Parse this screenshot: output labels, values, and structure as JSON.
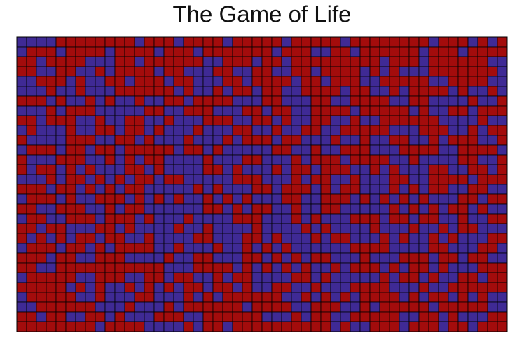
{
  "title": "The Game of Life",
  "colors": [
    "#a30c0c",
    "#3f2a95"
  ],
  "grid": [
    [
      1,
      1,
      1,
      1,
      0,
      0,
      0,
      0,
      0,
      0,
      0,
      0,
      1,
      0,
      0,
      0,
      1,
      0,
      0,
      0,
      0,
      1,
      0,
      0,
      0,
      0,
      0,
      1,
      0,
      0,
      0,
      0,
      0,
      1,
      0,
      0,
      0,
      0,
      0,
      0,
      0,
      0,
      1,
      0,
      0,
      0,
      1,
      0,
      1,
      0
    ],
    [
      1,
      0,
      0,
      0,
      1,
      0,
      0,
      0,
      0,
      1,
      0,
      0,
      0,
      0,
      1,
      0,
      0,
      0,
      1,
      0,
      0,
      0,
      0,
      0,
      0,
      0,
      1,
      0,
      0,
      0,
      1,
      1,
      0,
      0,
      1,
      0,
      0,
      0,
      0,
      0,
      0,
      1,
      0,
      0,
      0,
      1,
      0,
      0,
      0,
      0
    ],
    [
      0,
      0,
      1,
      0,
      0,
      0,
      0,
      1,
      1,
      1,
      0,
      0,
      1,
      0,
      0,
      0,
      0,
      0,
      0,
      1,
      1,
      0,
      0,
      0,
      1,
      0,
      0,
      1,
      0,
      0,
      0,
      0,
      0,
      0,
      0,
      0,
      0,
      1,
      0,
      0,
      0,
      1,
      0,
      0,
      0,
      0,
      0,
      0,
      1,
      1
    ],
    [
      0,
      0,
      1,
      1,
      0,
      0,
      1,
      1,
      0,
      1,
      0,
      0,
      0,
      0,
      1,
      0,
      0,
      1,
      1,
      1,
      0,
      0,
      1,
      1,
      0,
      0,
      1,
      1,
      0,
      0,
      1,
      0,
      0,
      0,
      0,
      1,
      0,
      1,
      0,
      1,
      1,
      1,
      0,
      0,
      0,
      0,
      0,
      0,
      0,
      1
    ],
    [
      1,
      1,
      0,
      0,
      0,
      1,
      0,
      1,
      1,
      0,
      0,
      1,
      0,
      0,
      0,
      1,
      0,
      0,
      1,
      1,
      1,
      0,
      0,
      1,
      0,
      0,
      0,
      0,
      1,
      0,
      0,
      1,
      0,
      0,
      0,
      1,
      1,
      0,
      0,
      0,
      0,
      0,
      1,
      1,
      0,
      0,
      0,
      0,
      1,
      1
    ],
    [
      1,
      1,
      1,
      0,
      1,
      1,
      0,
      1,
      1,
      1,
      0,
      0,
      0,
      0,
      0,
      0,
      1,
      0,
      1,
      1,
      0,
      1,
      0,
      0,
      1,
      0,
      0,
      1,
      1,
      0,
      0,
      0,
      0,
      1,
      0,
      0,
      1,
      1,
      0,
      1,
      0,
      0,
      0,
      0,
      1,
      0,
      1,
      1,
      0,
      1
    ],
    [
      0,
      0,
      0,
      1,
      0,
      1,
      1,
      0,
      1,
      0,
      1,
      1,
      0,
      1,
      1,
      0,
      0,
      1,
      0,
      0,
      0,
      0,
      1,
      1,
      1,
      0,
      0,
      1,
      1,
      1,
      0,
      0,
      1,
      1,
      0,
      0,
      0,
      0,
      1,
      1,
      0,
      0,
      1,
      1,
      1,
      1,
      0,
      1,
      1,
      0
    ],
    [
      1,
      1,
      1,
      0,
      1,
      0,
      0,
      0,
      1,
      1,
      1,
      1,
      1,
      0,
      0,
      1,
      1,
      0,
      0,
      0,
      1,
      1,
      1,
      0,
      0,
      1,
      0,
      0,
      1,
      1,
      0,
      0,
      0,
      0,
      1,
      0,
      0,
      0,
      0,
      0,
      1,
      0,
      1,
      1,
      0,
      0,
      1,
      0,
      0,
      0
    ],
    [
      0,
      0,
      1,
      0,
      0,
      0,
      1,
      1,
      0,
      1,
      1,
      0,
      0,
      1,
      1,
      0,
      1,
      1,
      1,
      0,
      0,
      0,
      1,
      1,
      0,
      0,
      1,
      0,
      1,
      1,
      0,
      0,
      1,
      1,
      0,
      1,
      1,
      0,
      0,
      0,
      0,
      0,
      0,
      1,
      1,
      1,
      1,
      0,
      1,
      1
    ],
    [
      1,
      0,
      1,
      1,
      1,
      0,
      1,
      1,
      0,
      0,
      1,
      0,
      0,
      1,
      0,
      1,
      1,
      1,
      0,
      1,
      1,
      1,
      0,
      0,
      1,
      1,
      0,
      1,
      1,
      0,
      0,
      1,
      1,
      0,
      0,
      0,
      0,
      0,
      1,
      1,
      1,
      0,
      0,
      0,
      1,
      1,
      0,
      1,
      0,
      0
    ],
    [
      0,
      1,
      1,
      1,
      1,
      0,
      0,
      0,
      1,
      1,
      0,
      0,
      1,
      0,
      1,
      1,
      1,
      0,
      1,
      1,
      1,
      0,
      1,
      0,
      0,
      0,
      1,
      0,
      0,
      1,
      1,
      1,
      0,
      1,
      1,
      0,
      1,
      1,
      0,
      0,
      1,
      1,
      0,
      1,
      0,
      0,
      0,
      1,
      1,
      0
    ],
    [
      1,
      0,
      0,
      0,
      1,
      0,
      0,
      1,
      0,
      0,
      1,
      0,
      0,
      0,
      0,
      0,
      1,
      0,
      0,
      1,
      0,
      1,
      1,
      1,
      1,
      1,
      0,
      0,
      1,
      1,
      0,
      1,
      1,
      0,
      0,
      0,
      1,
      1,
      1,
      0,
      0,
      0,
      0,
      1,
      1,
      0,
      0,
      0,
      0,
      1
    ],
    [
      0,
      1,
      1,
      1,
      0,
      0,
      0,
      1,
      1,
      0,
      1,
      0,
      1,
      0,
      0,
      1,
      1,
      1,
      1,
      0,
      1,
      1,
      1,
      0,
      0,
      1,
      1,
      1,
      0,
      1,
      0,
      0,
      0,
      1,
      0,
      0,
      0,
      0,
      1,
      1,
      0,
      1,
      1,
      1,
      1,
      0,
      0,
      1,
      1,
      0
    ],
    [
      0,
      1,
      0,
      0,
      1,
      0,
      1,
      0,
      1,
      1,
      1,
      0,
      0,
      1,
      0,
      1,
      1,
      1,
      1,
      0,
      0,
      1,
      0,
      1,
      1,
      1,
      0,
      1,
      0,
      0,
      1,
      0,
      0,
      0,
      1,
      1,
      0,
      1,
      0,
      1,
      1,
      1,
      0,
      0,
      1,
      1,
      0,
      0,
      1,
      0
    ],
    [
      1,
      1,
      1,
      0,
      1,
      0,
      0,
      1,
      0,
      1,
      0,
      1,
      0,
      0,
      1,
      0,
      0,
      1,
      1,
      1,
      1,
      1,
      0,
      0,
      0,
      1,
      1,
      1,
      0,
      1,
      0,
      0,
      1,
      1,
      0,
      1,
      1,
      1,
      0,
      0,
      1,
      1,
      0,
      0,
      0,
      0,
      1,
      0,
      0,
      0
    ],
    [
      0,
      0,
      0,
      1,
      0,
      0,
      1,
      0,
      1,
      0,
      1,
      0,
      0,
      1,
      1,
      1,
      1,
      1,
      0,
      1,
      0,
      1,
      1,
      1,
      0,
      0,
      1,
      0,
      0,
      0,
      1,
      0,
      1,
      0,
      0,
      1,
      1,
      1,
      0,
      1,
      0,
      1,
      0,
      0,
      1,
      1,
      0,
      0,
      1,
      1
    ],
    [
      1,
      0,
      0,
      0,
      1,
      0,
      1,
      1,
      0,
      0,
      0,
      1,
      0,
      1,
      0,
      1,
      0,
      1,
      1,
      0,
      1,
      0,
      1,
      0,
      1,
      1,
      1,
      0,
      0,
      1,
      1,
      0,
      0,
      0,
      1,
      0,
      1,
      0,
      1,
      0,
      1,
      0,
      1,
      1,
      1,
      0,
      0,
      1,
      0,
      0
    ],
    [
      0,
      0,
      1,
      1,
      0,
      0,
      0,
      1,
      1,
      0,
      1,
      0,
      0,
      1,
      1,
      1,
      1,
      1,
      1,
      0,
      0,
      1,
      0,
      1,
      0,
      0,
      1,
      1,
      0,
      1,
      1,
      0,
      0,
      1,
      1,
      1,
      1,
      1,
      0,
      1,
      0,
      1,
      0,
      1,
      0,
      0,
      1,
      0,
      1,
      1
    ],
    [
      1,
      0,
      0,
      1,
      1,
      0,
      0,
      0,
      1,
      0,
      0,
      0,
      1,
      0,
      1,
      1,
      1,
      0,
      1,
      1,
      1,
      1,
      0,
      0,
      0,
      1,
      1,
      1,
      0,
      1,
      0,
      1,
      1,
      1,
      0,
      0,
      0,
      1,
      0,
      0,
      1,
      0,
      0,
      1,
      1,
      0,
      1,
      1,
      0,
      0
    ],
    [
      0,
      0,
      1,
      0,
      0,
      1,
      1,
      1,
      0,
      0,
      1,
      0,
      1,
      1,
      1,
      1,
      0,
      1,
      1,
      0,
      1,
      1,
      1,
      1,
      0,
      1,
      1,
      1,
      1,
      0,
      1,
      0,
      1,
      1,
      1,
      1,
      0,
      1,
      1,
      1,
      0,
      1,
      1,
      0,
      1,
      0,
      0,
      1,
      1,
      1
    ],
    [
      0,
      1,
      0,
      1,
      0,
      1,
      0,
      0,
      1,
      0,
      0,
      1,
      1,
      0,
      1,
      1,
      1,
      1,
      0,
      0,
      1,
      1,
      1,
      0,
      0,
      1,
      0,
      1,
      1,
      1,
      0,
      1,
      0,
      0,
      1,
      1,
      1,
      0,
      1,
      0,
      1,
      1,
      0,
      1,
      0,
      1,
      1,
      1,
      0,
      0
    ],
    [
      1,
      0,
      0,
      0,
      1,
      0,
      0,
      1,
      0,
      1,
      0,
      0,
      0,
      0,
      1,
      1,
      0,
      1,
      1,
      1,
      0,
      1,
      1,
      0,
      1,
      0,
      1,
      0,
      1,
      1,
      1,
      1,
      1,
      1,
      0,
      0,
      0,
      0,
      1,
      1,
      1,
      1,
      0,
      0,
      1,
      1,
      1,
      0,
      0,
      1
    ],
    [
      0,
      0,
      0,
      1,
      0,
      0,
      1,
      1,
      0,
      0,
      0,
      1,
      1,
      1,
      1,
      0,
      1,
      1,
      0,
      0,
      1,
      1,
      1,
      0,
      0,
      1,
      0,
      1,
      0,
      1,
      0,
      0,
      1,
      1,
      1,
      0,
      1,
      1,
      1,
      0,
      0,
      0,
      1,
      0,
      0,
      1,
      0,
      0,
      1,
      1
    ],
    [
      0,
      0,
      1,
      1,
      0,
      0,
      0,
      0,
      0,
      0,
      0,
      0,
      0,
      0,
      0,
      1,
      1,
      1,
      0,
      0,
      0,
      0,
      1,
      0,
      1,
      0,
      1,
      0,
      1,
      0,
      1,
      1,
      0,
      1,
      0,
      0,
      0,
      1,
      0,
      1,
      0,
      0,
      1,
      0,
      1,
      1,
      1,
      0,
      0,
      0
    ],
    [
      1,
      0,
      0,
      0,
      0,
      0,
      1,
      1,
      0,
      0,
      0,
      1,
      1,
      0,
      0,
      1,
      0,
      0,
      1,
      1,
      0,
      1,
      0,
      0,
      1,
      1,
      1,
      1,
      0,
      0,
      1,
      0,
      1,
      1,
      1,
      1,
      1,
      0,
      1,
      0,
      0,
      1,
      0,
      1,
      1,
      0,
      0,
      1,
      0,
      0
    ],
    [
      0,
      0,
      0,
      0,
      0,
      1,
      0,
      1,
      0,
      1,
      1,
      0,
      1,
      0,
      1,
      0,
      1,
      0,
      0,
      1,
      0,
      0,
      1,
      0,
      1,
      1,
      0,
      0,
      1,
      1,
      0,
      1,
      1,
      1,
      0,
      0,
      0,
      0,
      1,
      1,
      1,
      0,
      1,
      1,
      0,
      0,
      0,
      0,
      0,
      0
    ],
    [
      1,
      0,
      0,
      0,
      0,
      0,
      1,
      1,
      0,
      1,
      1,
      1,
      0,
      0,
      1,
      1,
      1,
      0,
      1,
      0,
      1,
      0,
      0,
      0,
      0,
      0,
      0,
      1,
      1,
      0,
      1,
      0,
      1,
      0,
      1,
      0,
      0,
      0,
      0,
      1,
      0,
      1,
      0,
      0,
      1,
      0,
      1,
      0,
      1,
      1
    ],
    [
      1,
      1,
      0,
      0,
      0,
      0,
      0,
      0,
      1,
      1,
      1,
      0,
      1,
      1,
      1,
      0,
      1,
      0,
      0,
      0,
      0,
      0,
      0,
      1,
      0,
      0,
      0,
      0,
      1,
      1,
      0,
      0,
      0,
      1,
      1,
      0,
      1,
      0,
      0,
      0,
      0,
      0,
      1,
      0,
      0,
      0,
      0,
      0,
      1,
      1
    ],
    [
      0,
      0,
      1,
      0,
      0,
      1,
      1,
      0,
      0,
      1,
      0,
      1,
      1,
      1,
      0,
      0,
      0,
      1,
      1,
      0,
      0,
      0,
      0,
      0,
      0,
      1,
      1,
      1,
      0,
      1,
      0,
      0,
      1,
      1,
      0,
      0,
      0,
      0,
      0,
      1,
      1,
      0,
      0,
      1,
      0,
      1,
      1,
      1,
      0,
      0
    ],
    [
      0,
      0,
      0,
      0,
      0,
      0,
      0,
      0,
      1,
      0,
      0,
      0,
      0,
      1,
      1,
      1,
      1,
      0,
      1,
      0,
      0,
      1,
      0,
      0,
      0,
      0,
      0,
      0,
      0,
      0,
      0,
      0,
      1,
      0,
      1,
      1,
      0,
      0,
      0,
      1,
      0,
      0,
      0,
      1,
      0,
      0,
      1,
      0,
      0,
      0
    ]
  ]
}
